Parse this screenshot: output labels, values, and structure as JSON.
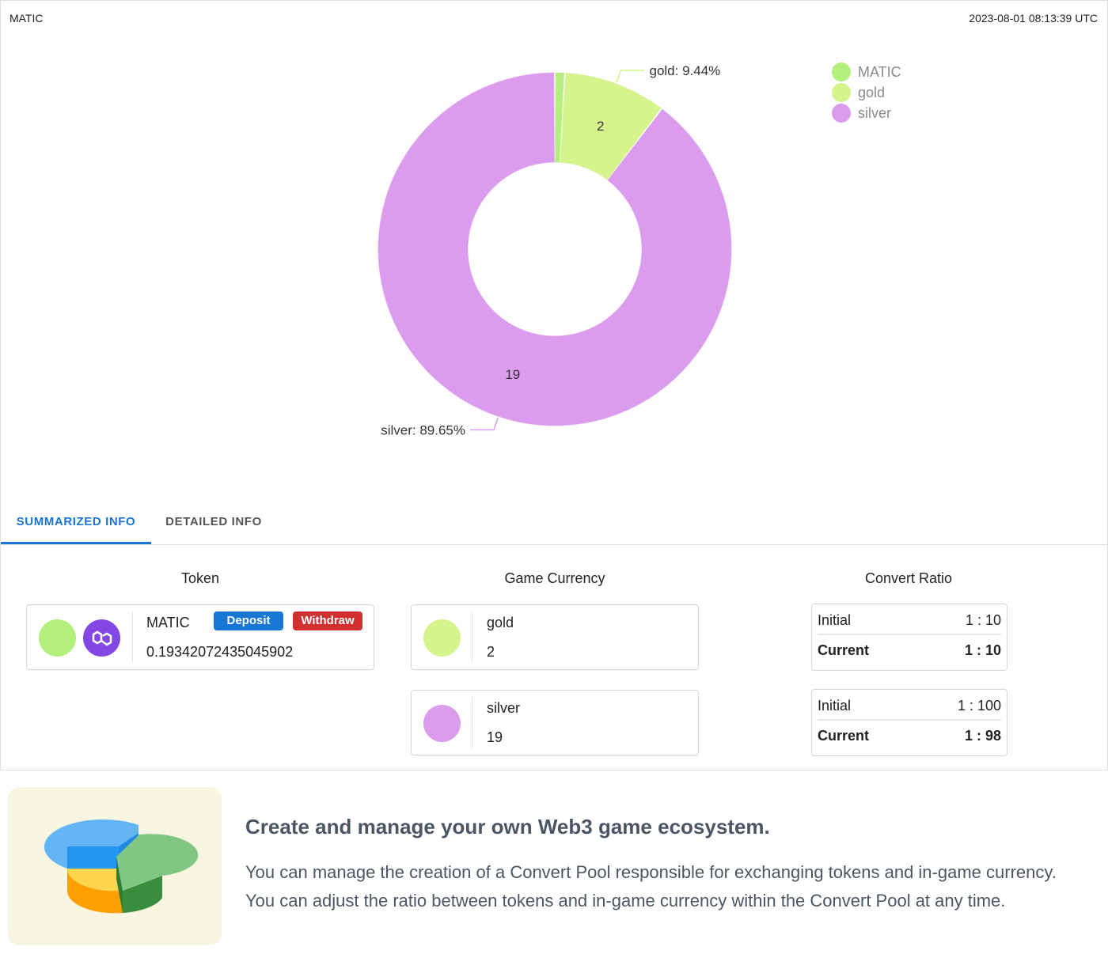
{
  "header": {
    "title": "MATIC",
    "timestamp": "2023-08-01 08:13:39 UTC"
  },
  "chart_data": {
    "type": "pie",
    "variant": "donut",
    "categories": [
      "MATIC",
      "gold",
      "silver"
    ],
    "values": [
      0.193420724350459,
      2,
      19
    ],
    "slice_labels": [
      "",
      "2",
      "19"
    ],
    "callouts": [
      "",
      "gold: 9.44%",
      "silver: 89.65%"
    ],
    "colors": [
      "#b2f07b",
      "#d6f48c",
      "#db9ced"
    ],
    "legend_position": "top-right"
  },
  "legend": [
    {
      "label": "MATIC",
      "color": "#b2f07b"
    },
    {
      "label": "gold",
      "color": "#d6f48c"
    },
    {
      "label": "silver",
      "color": "#db9ced"
    }
  ],
  "tabs": {
    "summarized": "SUMMARIZED INFO",
    "detailed": "DETAILED INFO"
  },
  "columns": {
    "token": "Token",
    "game_currency": "Game Currency",
    "convert_ratio": "Convert Ratio"
  },
  "token": {
    "name": "MATIC",
    "amount": "0.19342072435045902",
    "deposit_label": "Deposit",
    "withdraw_label": "Withdraw",
    "color": "#b2f07b",
    "logo_color": "#8247e5"
  },
  "currencies": [
    {
      "name": "gold",
      "amount": "2",
      "color": "#d6f48c"
    },
    {
      "name": "silver",
      "amount": "19",
      "color": "#db9ced"
    }
  ],
  "ratios": [
    {
      "initial_label": "Initial",
      "initial": "1 : 10",
      "current_label": "Current",
      "current": "1 : 10"
    },
    {
      "initial_label": "Initial",
      "initial": "1 : 100",
      "current_label": "Current",
      "current": "1 : 98"
    }
  ],
  "promo": {
    "title": "Create and manage your own Web3 game ecosystem.",
    "line1": "You can manage the creation of a Convert Pool responsible for exchanging tokens and in-game currency.",
    "line2": "You can adjust the ratio between tokens and in-game currency within the Convert Pool at any time."
  }
}
